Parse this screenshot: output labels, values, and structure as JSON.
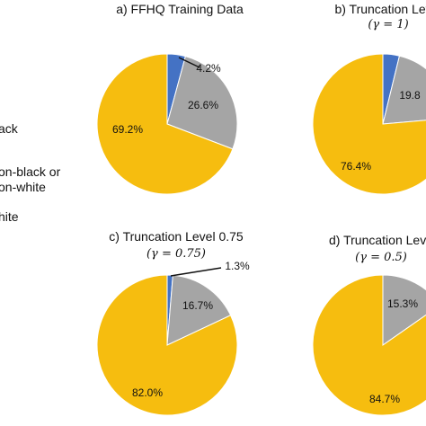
{
  "chart_data": {
    "type": "pie",
    "legend": {
      "placement": "left",
      "entries": [
        {
          "key": "black",
          "label_lines": [
            "ack"
          ],
          "color": "#4472c4"
        },
        {
          "key": "other",
          "label_lines": [
            "on-black or",
            "on-white"
          ],
          "color": "#a5a5a5"
        },
        {
          "key": "white",
          "label_lines": [
            "hite"
          ],
          "color": "#f6bd0f"
        }
      ]
    },
    "charts": [
      {
        "id": "a",
        "title": "a)   FFHQ Training Data",
        "subtitle": "",
        "slices": [
          {
            "key": "black",
            "value": 4.2,
            "label": "4.2%"
          },
          {
            "key": "other",
            "value": 26.6,
            "label": "26.6%"
          },
          {
            "key": "white",
            "value": 69.2,
            "label": "69.2%"
          }
        ]
      },
      {
        "id": "b",
        "title": "b) Truncation Level",
        "subtitle": "(γ = 1)",
        "slices": [
          {
            "key": "black",
            "value": 3.8,
            "label": ""
          },
          {
            "key": "other",
            "value": 19.8,
            "label": "19.8"
          },
          {
            "key": "white",
            "value": 76.4,
            "label": "76.4%"
          }
        ]
      },
      {
        "id": "c",
        "title": "c) Truncation Level 0.75",
        "subtitle": "(γ = 0.75)",
        "slices": [
          {
            "key": "black",
            "value": 1.3,
            "label": "1.3%"
          },
          {
            "key": "other",
            "value": 16.7,
            "label": "16.7%"
          },
          {
            "key": "white",
            "value": 82.0,
            "label": "82.0%"
          }
        ]
      },
      {
        "id": "d",
        "title": "d) Truncation Leve",
        "subtitle": "(γ = 0.5)",
        "slices": [
          {
            "key": "black",
            "value": 0.0,
            "label": ""
          },
          {
            "key": "other",
            "value": 15.3,
            "label": "15.3%"
          },
          {
            "key": "white",
            "value": 84.7,
            "label": "84.7%"
          }
        ]
      }
    ]
  }
}
